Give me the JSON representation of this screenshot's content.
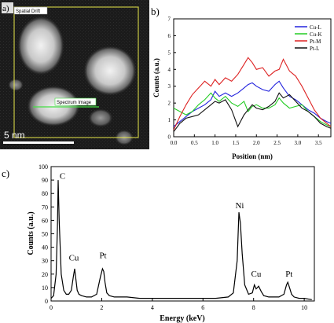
{
  "panel_a": {
    "label": "a)",
    "spatial_drift_label": "Spatial Drift",
    "spectrum_image_label": "Spectrum Image",
    "scale_bar_label": "5 nm"
  },
  "panel_b": {
    "label": "b)"
  },
  "panel_c": {
    "label": "c)"
  },
  "chart_data": [
    {
      "type": "line",
      "xlabel": "Position (nm)",
      "ylabel": "Counts (a.u.)",
      "xlim": [
        0,
        3.8
      ],
      "ylim": [
        0,
        7
      ],
      "xticks": [
        0.0,
        0.5,
        1.0,
        1.5,
        2.0,
        2.5,
        3.0,
        3.5
      ],
      "yticks": [
        0,
        1,
        2,
        3,
        4,
        5,
        6,
        7
      ],
      "legend": "top-right",
      "series": [
        {
          "name": "Cu-L",
          "color": "#2222dd",
          "x": [
            0.0,
            0.15,
            0.3,
            0.45,
            0.6,
            0.75,
            0.9,
            1.0,
            1.1,
            1.25,
            1.4,
            1.55,
            1.7,
            1.8,
            1.9,
            2.0,
            2.15,
            2.3,
            2.45,
            2.55,
            2.65,
            2.8,
            2.95,
            3.1,
            3.25,
            3.4,
            3.55,
            3.7,
            3.8
          ],
          "values": [
            0.6,
            0.9,
            1.2,
            1.5,
            1.7,
            1.9,
            2.2,
            2.7,
            2.4,
            2.6,
            2.4,
            2.6,
            2.9,
            3.1,
            3.2,
            3.0,
            2.8,
            2.7,
            3.1,
            3.3,
            2.9,
            2.4,
            2.2,
            1.9,
            1.6,
            1.4,
            1.1,
            0.9,
            0.8
          ]
        },
        {
          "name": "Cu-K",
          "color": "#22cc22",
          "x": [
            0.0,
            0.15,
            0.3,
            0.45,
            0.6,
            0.75,
            0.9,
            1.0,
            1.1,
            1.25,
            1.4,
            1.55,
            1.7,
            1.8,
            1.9,
            2.0,
            2.15,
            2.3,
            2.45,
            2.55,
            2.65,
            2.8,
            2.95,
            3.1,
            3.25,
            3.4,
            3.55,
            3.7,
            3.8
          ],
          "values": [
            1.7,
            1.5,
            1.3,
            1.5,
            1.9,
            2.2,
            2.6,
            2.3,
            2.1,
            2.4,
            2.0,
            1.8,
            2.1,
            1.5,
            1.8,
            1.9,
            1.7,
            1.7,
            1.9,
            2.3,
            2.0,
            1.7,
            1.8,
            1.9,
            1.5,
            1.2,
            0.9,
            0.7,
            0.6
          ]
        },
        {
          "name": "Pt-M",
          "color": "#dd2222",
          "x": [
            0.0,
            0.15,
            0.3,
            0.45,
            0.6,
            0.75,
            0.9,
            1.0,
            1.1,
            1.25,
            1.4,
            1.55,
            1.7,
            1.8,
            1.9,
            2.0,
            2.15,
            2.3,
            2.45,
            2.55,
            2.65,
            2.8,
            2.95,
            3.1,
            3.25,
            3.4,
            3.55,
            3.7,
            3.8
          ],
          "values": [
            0.4,
            1.2,
            1.9,
            2.5,
            2.9,
            3.3,
            3.0,
            3.4,
            3.1,
            3.5,
            3.3,
            3.7,
            4.3,
            4.7,
            4.4,
            4.0,
            4.1,
            3.6,
            3.9,
            4.0,
            4.6,
            3.9,
            3.6,
            3.0,
            2.3,
            1.6,
            1.1,
            0.8,
            0.6
          ]
        },
        {
          "name": "Pt-L",
          "color": "#111111",
          "x": [
            0.0,
            0.15,
            0.3,
            0.45,
            0.6,
            0.75,
            0.9,
            1.0,
            1.1,
            1.25,
            1.4,
            1.55,
            1.7,
            1.8,
            1.9,
            2.0,
            2.15,
            2.3,
            2.45,
            2.55,
            2.65,
            2.8,
            2.95,
            3.1,
            3.25,
            3.4,
            3.55,
            3.7,
            3.8
          ],
          "values": [
            0.3,
            0.8,
            1.1,
            1.2,
            1.3,
            1.6,
            1.9,
            2.1,
            2.0,
            2.2,
            1.6,
            0.6,
            1.3,
            1.6,
            1.9,
            1.7,
            1.6,
            1.8,
            2.1,
            2.6,
            2.3,
            2.5,
            2.1,
            1.7,
            1.5,
            1.2,
            0.8,
            0.6,
            0.5
          ]
        }
      ]
    },
    {
      "type": "line",
      "xlabel": "Energy (keV)",
      "ylabel": "Counts (a.u.)",
      "xlim": [
        0,
        10.4
      ],
      "ylim": [
        0,
        100
      ],
      "xticks": [
        0,
        2,
        4,
        6,
        8,
        10
      ],
      "yticks": [
        0,
        10,
        20,
        30,
        40,
        50,
        60,
        70,
        80,
        90,
        100
      ],
      "series": [
        {
          "color": "#000000",
          "x": [
            0.0,
            0.1,
            0.2,
            0.25,
            0.28,
            0.32,
            0.4,
            0.5,
            0.6,
            0.7,
            0.8,
            0.88,
            0.93,
            0.98,
            1.03,
            1.1,
            1.2,
            1.4,
            1.6,
            1.8,
            1.95,
            2.03,
            2.08,
            2.13,
            2.2,
            2.3,
            2.5,
            3.0,
            3.5,
            4.0,
            4.5,
            5.0,
            5.5,
            6.0,
            6.5,
            7.0,
            7.2,
            7.35,
            7.42,
            7.48,
            7.55,
            7.65,
            7.8,
            7.95,
            8.03,
            8.1,
            8.2,
            8.3,
            8.4,
            8.6,
            8.8,
            9.0,
            9.2,
            9.3,
            9.35,
            9.42,
            9.5,
            9.6,
            9.8,
            10.0,
            10.3
          ],
          "values": [
            2,
            4,
            20,
            55,
            90,
            60,
            20,
            8,
            5,
            5,
            8,
            18,
            24,
            16,
            8,
            5,
            4,
            3,
            3,
            5,
            18,
            24,
            22,
            14,
            6,
            4,
            3,
            3,
            2,
            2,
            2,
            2,
            2,
            2,
            2,
            3,
            6,
            30,
            66,
            58,
            35,
            12,
            5,
            6,
            12,
            9,
            11,
            7,
            4,
            3,
            3,
            3,
            5,
            12,
            14,
            10,
            5,
            3,
            2,
            2,
            1
          ]
        }
      ],
      "annotations": [
        {
          "text": "C",
          "x": 0.45,
          "y": 91
        },
        {
          "text": "Cu",
          "x": 0.9,
          "y": 30
        },
        {
          "text": "Pt",
          "x": 2.05,
          "y": 32
        },
        {
          "text": "Ni",
          "x": 7.45,
          "y": 69
        },
        {
          "text": "Cu",
          "x": 8.1,
          "y": 18
        },
        {
          "text": "Pt",
          "x": 9.4,
          "y": 18
        }
      ]
    }
  ]
}
